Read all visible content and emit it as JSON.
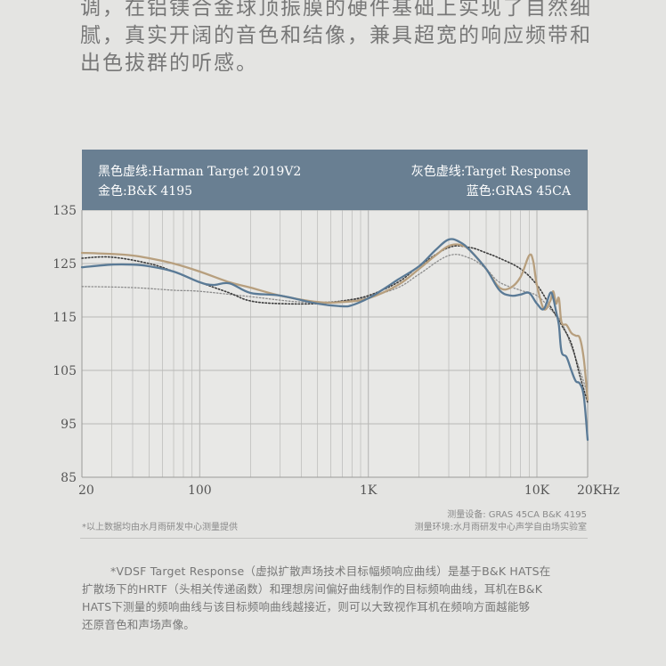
{
  "intro": {
    "lines": [
      "调，在铝镁合金球顶振膜的硬件基础上实现了自然细",
      "腻，真实开阔的音色和结像，兼具超宽的响应频带和",
      "出色拔群的听感。"
    ]
  },
  "legend": {
    "black_dashed": "黑色虚线:Harman Target 2019V2",
    "gold": "金色:B&K 4195",
    "gray_dashed": "灰色虚线:Target Response",
    "blue": "蓝色:GRAS 45CA"
  },
  "colors": {
    "legend_bg": "#697f92",
    "blue": "#5a7a96",
    "gold": "#b79f7e",
    "black_dashed": "#3c3c3c",
    "gray_dashed": "#8c8c8c",
    "plot_bg": "#e8e8e6",
    "grid": "#b8b8b6"
  },
  "footnote": {
    "left": "*以上数据均由水月雨研发中心测量提供",
    "right_line1": "测量设备: GRAS 45CA    B&K 4195",
    "right_line2": "测量环境:水月雨研发中心声学自由场实验室"
  },
  "note": {
    "lines": [
      "*VDSF Target Response（虚拟扩散声场技术目标幅频响应曲线）是基于B&K HATS在",
      "扩散场下的HRTF（头相关传递函数）和理想房间偏好曲线制作的目标频响曲线，耳机在B&K",
      "HATS下测量的频响曲线与该目标频响曲线越接近，则可以大致视作耳机在频响方面越能够",
      "还原音色和声场声像。"
    ]
  },
  "chart_data": {
    "type": "line",
    "xscale": "log",
    "xlim": [
      20,
      20000
    ],
    "ylim": [
      85,
      135
    ],
    "yticks": [
      135,
      125,
      115,
      105,
      95,
      85
    ],
    "xticks": [
      {
        "value": 20,
        "label": "20"
      },
      {
        "value": 100,
        "label": "100"
      },
      {
        "value": 1000,
        "label": "1K"
      },
      {
        "value": 10000,
        "label": "10K"
      },
      {
        "value": 20000,
        "label": "20KHz"
      }
    ],
    "grid": true,
    "legend_position": "top",
    "series": [
      {
        "name": "Target Response",
        "style": "dotted",
        "color_key": "gray_dashed",
        "x": [
          20,
          40,
          70,
          100,
          200,
          400,
          700,
          1000,
          1500,
          2000,
          3000,
          4000,
          5000,
          6000,
          8000,
          10000,
          12000,
          14000,
          16000,
          18000,
          20000
        ],
        "y": [
          120.7,
          120.5,
          120.0,
          119.8,
          118.8,
          117.8,
          118.0,
          118.8,
          120.5,
          123.0,
          126.5,
          126.0,
          124.0,
          121.5,
          120.0,
          119.0,
          116.5,
          114.0,
          109.5,
          105.0,
          100.5
        ]
      },
      {
        "name": "Harman Target 2019V2",
        "style": "dotted",
        "color_key": "black_dashed",
        "x": [
          20,
          30,
          50,
          70,
          100,
          150,
          200,
          300,
          500,
          700,
          1000,
          1500,
          2000,
          3000,
          4000,
          5000,
          6000,
          8000,
          10000,
          12000,
          14000,
          16000,
          18000,
          20000
        ],
        "y": [
          126.0,
          126.2,
          125.0,
          123.5,
          121.5,
          119.5,
          118.0,
          117.5,
          117.5,
          118.0,
          119.0,
          121.5,
          124.5,
          128.0,
          128.0,
          127.0,
          126.0,
          124.0,
          121.0,
          117.0,
          113.5,
          110.0,
          104.0,
          99.0
        ]
      },
      {
        "name": "B&K 4195",
        "style": "solid",
        "color_key": "gold",
        "x": [
          20,
          30,
          40,
          50,
          70,
          100,
          150,
          200,
          300,
          500,
          700,
          1000,
          1500,
          2000,
          2500,
          3000,
          3500,
          4000,
          5000,
          6000,
          7000,
          8000,
          9000,
          9500,
          10000,
          11000,
          12000,
          12500,
          13000,
          13500,
          14000,
          15000,
          16000,
          17000,
          18000,
          19000,
          20000
        ],
        "y": [
          127.0,
          126.8,
          126.5,
          126.0,
          125.0,
          123.5,
          121.5,
          120.5,
          119.0,
          117.8,
          117.8,
          118.5,
          121.0,
          124.0,
          126.5,
          128.3,
          128.5,
          127.5,
          124.0,
          120.5,
          120.5,
          122.5,
          126.5,
          125.5,
          121.0,
          116.5,
          118.0,
          119.8,
          117.5,
          118.5,
          114.0,
          113.5,
          112.0,
          111.5,
          111.0,
          107.0,
          99.5
        ]
      },
      {
        "name": "GRAS 45CA",
        "style": "solid",
        "color_key": "blue",
        "x": [
          20,
          30,
          40,
          50,
          70,
          100,
          120,
          150,
          200,
          300,
          500,
          700,
          800,
          1000,
          1200,
          1500,
          2000,
          2500,
          3000,
          3500,
          4000,
          5000,
          6000,
          7000,
          8000,
          9000,
          10000,
          11000,
          12000,
          12500,
          13000,
          13500,
          14000,
          15000,
          16000,
          17000,
          18000,
          19000,
          20000
        ],
        "y": [
          124.3,
          124.8,
          124.8,
          124.5,
          123.5,
          121.5,
          121.0,
          121.3,
          119.5,
          119.0,
          117.5,
          117.0,
          117.2,
          118.5,
          120.0,
          122.0,
          124.5,
          127.5,
          129.5,
          129.0,
          127.5,
          124.0,
          120.0,
          119.0,
          119.2,
          119.5,
          117.5,
          116.5,
          119.5,
          118.5,
          116.0,
          113.5,
          108.5,
          107.5,
          105.0,
          103.0,
          102.5,
          100.0,
          92.0
        ]
      }
    ]
  }
}
